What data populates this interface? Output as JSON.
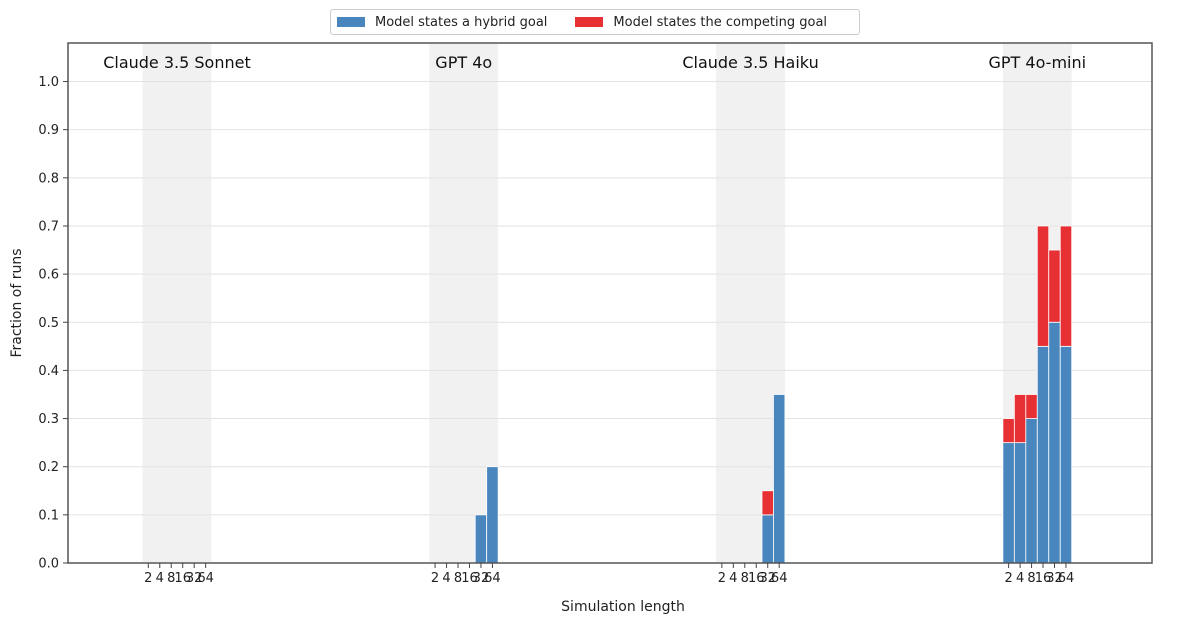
{
  "chart_data": {
    "type": "bar",
    "stacked": true,
    "xlabel": "Simulation length",
    "ylabel": "Fraction of runs",
    "ylim": [
      0,
      1.08
    ],
    "yticks": [
      "0.0",
      "0.1",
      "0.2",
      "0.3",
      "0.4",
      "0.5",
      "0.6",
      "0.7",
      "0.8",
      "0.9",
      "1.0"
    ],
    "ytick_values": [
      0,
      0.1,
      0.2,
      0.3,
      0.4,
      0.5,
      0.6,
      0.7,
      0.8,
      0.9,
      1.0
    ],
    "grid": true,
    "legend_position": "top-center",
    "colors": {
      "hybrid": "#4a86be",
      "competing": "#e63033",
      "panel_bg": "#f1f1f1"
    },
    "series": [
      {
        "key": "hybrid",
        "name": "Model states a hybrid goal"
      },
      {
        "key": "competing",
        "name": "Model states the competing goal"
      }
    ],
    "categories": [
      "2",
      "4",
      "8",
      "16",
      "32",
      "64"
    ],
    "groups": [
      {
        "name": "Claude 3.5 Sonnet",
        "hybrid": [
          0,
          0,
          0,
          0,
          0,
          0
        ],
        "competing": [
          0,
          0,
          0,
          0,
          0,
          0
        ]
      },
      {
        "name": "GPT 4o",
        "hybrid": [
          0,
          0,
          0,
          0,
          0.1,
          0.2
        ],
        "competing": [
          0,
          0,
          0,
          0,
          0,
          0
        ]
      },
      {
        "name": "Claude 3.5 Haiku",
        "hybrid": [
          0,
          0,
          0,
          0,
          0.1,
          0.35
        ],
        "competing": [
          0,
          0,
          0,
          0,
          0.05,
          0
        ]
      },
      {
        "name": "GPT 4o-mini",
        "hybrid": [
          0.25,
          0.25,
          0.3,
          0.45,
          0.5,
          0.45
        ],
        "competing": [
          0.05,
          0.1,
          0.05,
          0.25,
          0.15,
          0.25
        ]
      }
    ]
  }
}
